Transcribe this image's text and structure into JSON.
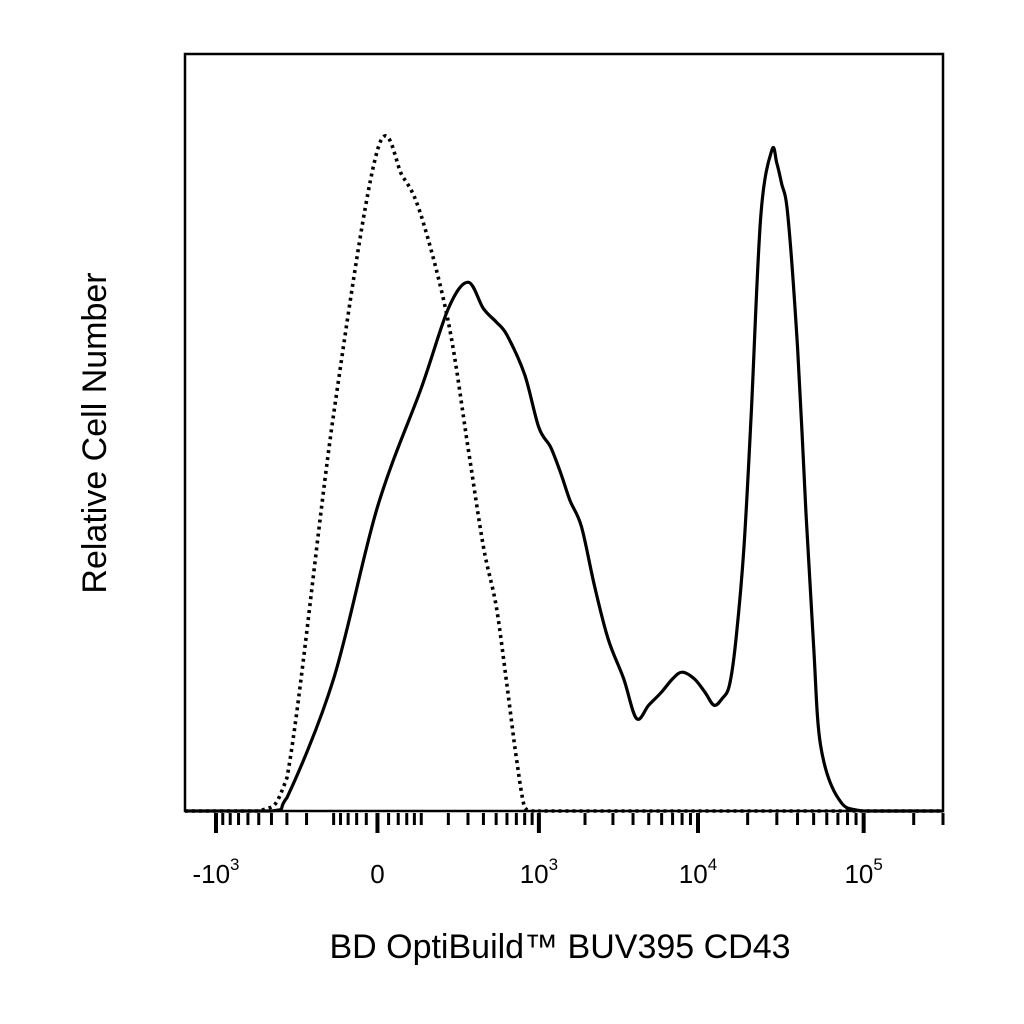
{
  "chart_data": {
    "type": "line",
    "title": "",
    "xlabel": "BD OptiBuild™ BUV395 CD43",
    "ylabel": "Relative Cell Number",
    "xscale": "biexponential",
    "ylim": [
      0,
      100
    ],
    "grid": false,
    "legend": "none",
    "x_ticks": [
      {
        "value": -1000,
        "base": "-10",
        "exp": "3"
      },
      {
        "value": 0,
        "base": "0",
        "exp": ""
      },
      {
        "value": 1000,
        "base": "10",
        "exp": "3"
      },
      {
        "value": 10000,
        "base": "10",
        "exp": "4"
      },
      {
        "value": 100000,
        "base": "10",
        "exp": "5"
      }
    ],
    "series": [
      {
        "style": "dotted",
        "color": "#000000",
        "x": [
          -1600,
          -500,
          -300,
          -100,
          0,
          50,
          100,
          200,
          300,
          400,
          500,
          600,
          700,
          800,
          900,
          1000,
          1200,
          5000,
          100000,
          300000
        ],
        "y": [
          0,
          0,
          5,
          60,
          100,
          96,
          90,
          74,
          55,
          40,
          31,
          19,
          8,
          0.5,
          0,
          0,
          0,
          0,
          0,
          0
        ]
      },
      {
        "style": "solid",
        "color": "#000000",
        "x": [
          -1600,
          -400,
          -300,
          -100,
          0,
          100,
          200,
          300,
          400,
          500,
          600,
          800,
          1000,
          1200,
          1400,
          1600,
          1900,
          2300,
          2800,
          3500,
          4200,
          5000,
          6000,
          7000,
          8000,
          9500,
          11000,
          12500,
          14000,
          15500,
          17000,
          19000,
          21000,
          24000,
          28000,
          30000,
          32000,
          35000,
          40000,
          45000,
          50000,
          55000,
          70000,
          100000,
          300000
        ],
        "y": [
          0,
          0,
          2,
          20,
          46,
          64,
          76,
          80,
          76,
          74,
          72,
          66,
          58,
          55,
          51,
          47,
          43,
          34,
          26,
          20,
          14,
          16,
          18,
          20,
          21,
          20,
          18,
          16,
          17,
          19,
          26,
          40,
          60,
          90,
          100,
          98,
          95,
          90,
          70,
          45,
          25,
          10,
          2,
          0,
          0
        ]
      }
    ]
  }
}
